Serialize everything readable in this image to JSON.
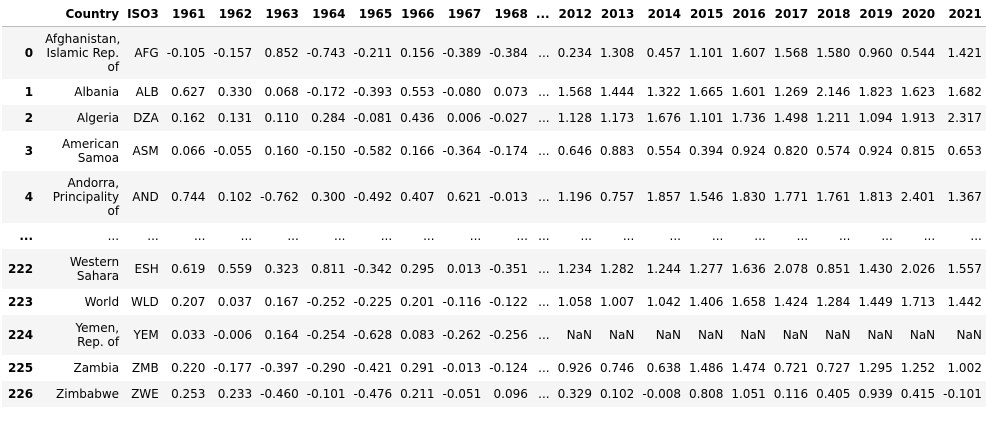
{
  "columns": [
    "",
    "Country",
    "ISO3",
    "1961",
    "1962",
    "1963",
    "1964",
    "1965",
    "1966",
    "1967",
    "1968",
    "...",
    "2012",
    "2013",
    "2014",
    "2015",
    "2016",
    "2017",
    "2018",
    "2019",
    "2020",
    "2021"
  ],
  "rows": [
    {
      "index": "0",
      "country": "Afghanistan, Islamic Rep. of",
      "iso3": "AFG",
      "values": [
        "-0.105",
        "-0.157",
        "0.852",
        "-0.743",
        "-0.211",
        "0.156",
        "-0.389",
        "-0.384",
        "...",
        "0.234",
        "1.308",
        "0.457",
        "1.101",
        "1.607",
        "1.568",
        "1.580",
        "0.960",
        "0.544",
        "1.421"
      ]
    },
    {
      "index": "1",
      "country": "Albania",
      "iso3": "ALB",
      "values": [
        "0.627",
        "0.330",
        "0.068",
        "-0.172",
        "-0.393",
        "0.553",
        "-0.080",
        "0.073",
        "...",
        "1.568",
        "1.444",
        "1.322",
        "1.665",
        "1.601",
        "1.269",
        "2.146",
        "1.823",
        "1.623",
        "1.682"
      ]
    },
    {
      "index": "2",
      "country": "Algeria",
      "iso3": "DZA",
      "values": [
        "0.162",
        "0.131",
        "0.110",
        "0.284",
        "-0.081",
        "0.436",
        "0.006",
        "-0.027",
        "...",
        "1.128",
        "1.173",
        "1.676",
        "1.101",
        "1.736",
        "1.498",
        "1.211",
        "1.094",
        "1.913",
        "2.317"
      ]
    },
    {
      "index": "3",
      "country": "American Samoa",
      "iso3": "ASM",
      "values": [
        "0.066",
        "-0.055",
        "0.160",
        "-0.150",
        "-0.582",
        "0.166",
        "-0.364",
        "-0.174",
        "...",
        "0.646",
        "0.883",
        "0.554",
        "0.394",
        "0.924",
        "0.820",
        "0.574",
        "0.924",
        "0.815",
        "0.653"
      ]
    },
    {
      "index": "4",
      "country": "Andorra, Principality of",
      "iso3": "AND",
      "values": [
        "0.744",
        "0.102",
        "-0.762",
        "0.300",
        "-0.492",
        "0.407",
        "0.621",
        "-0.013",
        "...",
        "1.196",
        "0.757",
        "1.857",
        "1.546",
        "1.830",
        "1.771",
        "1.761",
        "1.813",
        "2.401",
        "1.367"
      ]
    },
    {
      "index": "...",
      "country": "...",
      "iso3": "...",
      "values": [
        "...",
        "...",
        "...",
        "...",
        "...",
        "...",
        "...",
        "...",
        "...",
        "...",
        "...",
        "...",
        "...",
        "...",
        "...",
        "...",
        "...",
        "...",
        "..."
      ]
    },
    {
      "index": "222",
      "country": "Western Sahara",
      "iso3": "ESH",
      "values": [
        "0.619",
        "0.559",
        "0.323",
        "0.811",
        "-0.342",
        "0.295",
        "0.013",
        "-0.351",
        "...",
        "1.234",
        "1.282",
        "1.244",
        "1.277",
        "1.636",
        "2.078",
        "0.851",
        "1.430",
        "2.026",
        "1.557"
      ]
    },
    {
      "index": "223",
      "country": "World",
      "iso3": "WLD",
      "values": [
        "0.207",
        "0.037",
        "0.167",
        "-0.252",
        "-0.225",
        "0.201",
        "-0.116",
        "-0.122",
        "...",
        "1.058",
        "1.007",
        "1.042",
        "1.406",
        "1.658",
        "1.424",
        "1.284",
        "1.449",
        "1.713",
        "1.442"
      ]
    },
    {
      "index": "224",
      "country": "Yemen, Rep. of",
      "iso3": "YEM",
      "values": [
        "0.033",
        "-0.006",
        "0.164",
        "-0.254",
        "-0.628",
        "0.083",
        "-0.262",
        "-0.256",
        "...",
        "NaN",
        "NaN",
        "NaN",
        "NaN",
        "NaN",
        "NaN",
        "NaN",
        "NaN",
        "NaN",
        "NaN"
      ]
    },
    {
      "index": "225",
      "country": "Zambia",
      "iso3": "ZMB",
      "values": [
        "0.220",
        "-0.177",
        "-0.397",
        "-0.290",
        "-0.421",
        "0.291",
        "-0.013",
        "-0.124",
        "...",
        "0.926",
        "0.746",
        "0.638",
        "1.486",
        "1.474",
        "0.721",
        "0.727",
        "1.295",
        "1.252",
        "1.002"
      ]
    },
    {
      "index": "226",
      "country": "Zimbabwe",
      "iso3": "ZWE",
      "values": [
        "0.253",
        "0.233",
        "-0.460",
        "-0.101",
        "-0.476",
        "0.211",
        "-0.051",
        "0.096",
        "...",
        "0.329",
        "0.102",
        "-0.008",
        "0.808",
        "1.051",
        "0.116",
        "0.405",
        "0.939",
        "0.415",
        "-0.101"
      ]
    }
  ]
}
